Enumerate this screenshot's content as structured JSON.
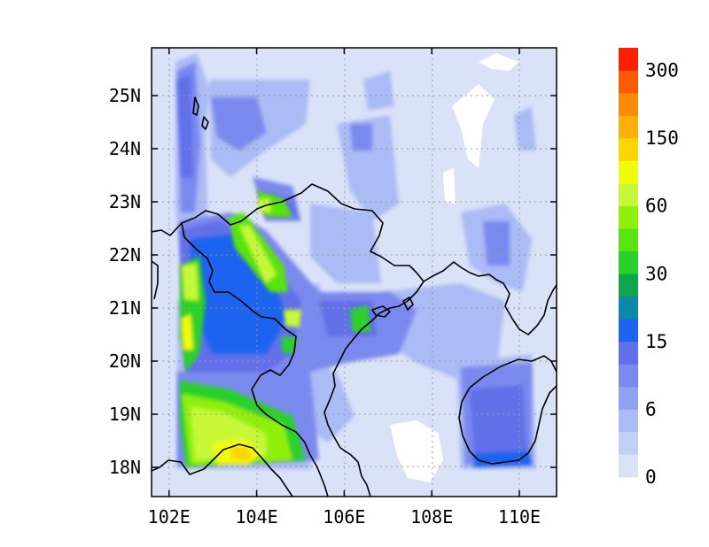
{
  "map": {
    "x_ticks": [
      "102E",
      "104E",
      "106E",
      "108E",
      "110E"
    ],
    "y_ticks": [
      "25N",
      "24N",
      "23N",
      "22N",
      "21N",
      "20N",
      "19N",
      "18N"
    ],
    "lon_values": [
      102,
      104,
      106,
      108,
      110
    ],
    "lat_values": [
      25,
      24,
      23,
      22,
      21,
      20,
      19,
      18
    ],
    "lon_range": [
      101.6,
      110.85
    ],
    "lat_range": [
      17.45,
      25.9
    ],
    "grid": "dotted",
    "background_color": "#dae2f8",
    "coastline_color": "#000000"
  },
  "colorbar": {
    "colors": [
      "#dae2f8",
      "#c3cff7",
      "#aabbf5",
      "#8fa1f2",
      "#7a89ee",
      "#6270e9",
      "#1f63f0",
      "#0f87a8",
      "#10a650",
      "#2bd12b",
      "#58e410",
      "#90f00c",
      "#c6f838",
      "#f2fa0e",
      "#fcd505",
      "#fdb007",
      "#fd8a05",
      "#fc5a03",
      "#fc1f02"
    ],
    "labels": [
      "0",
      "6",
      "15",
      "30",
      "60",
      "150",
      "300"
    ]
  }
}
